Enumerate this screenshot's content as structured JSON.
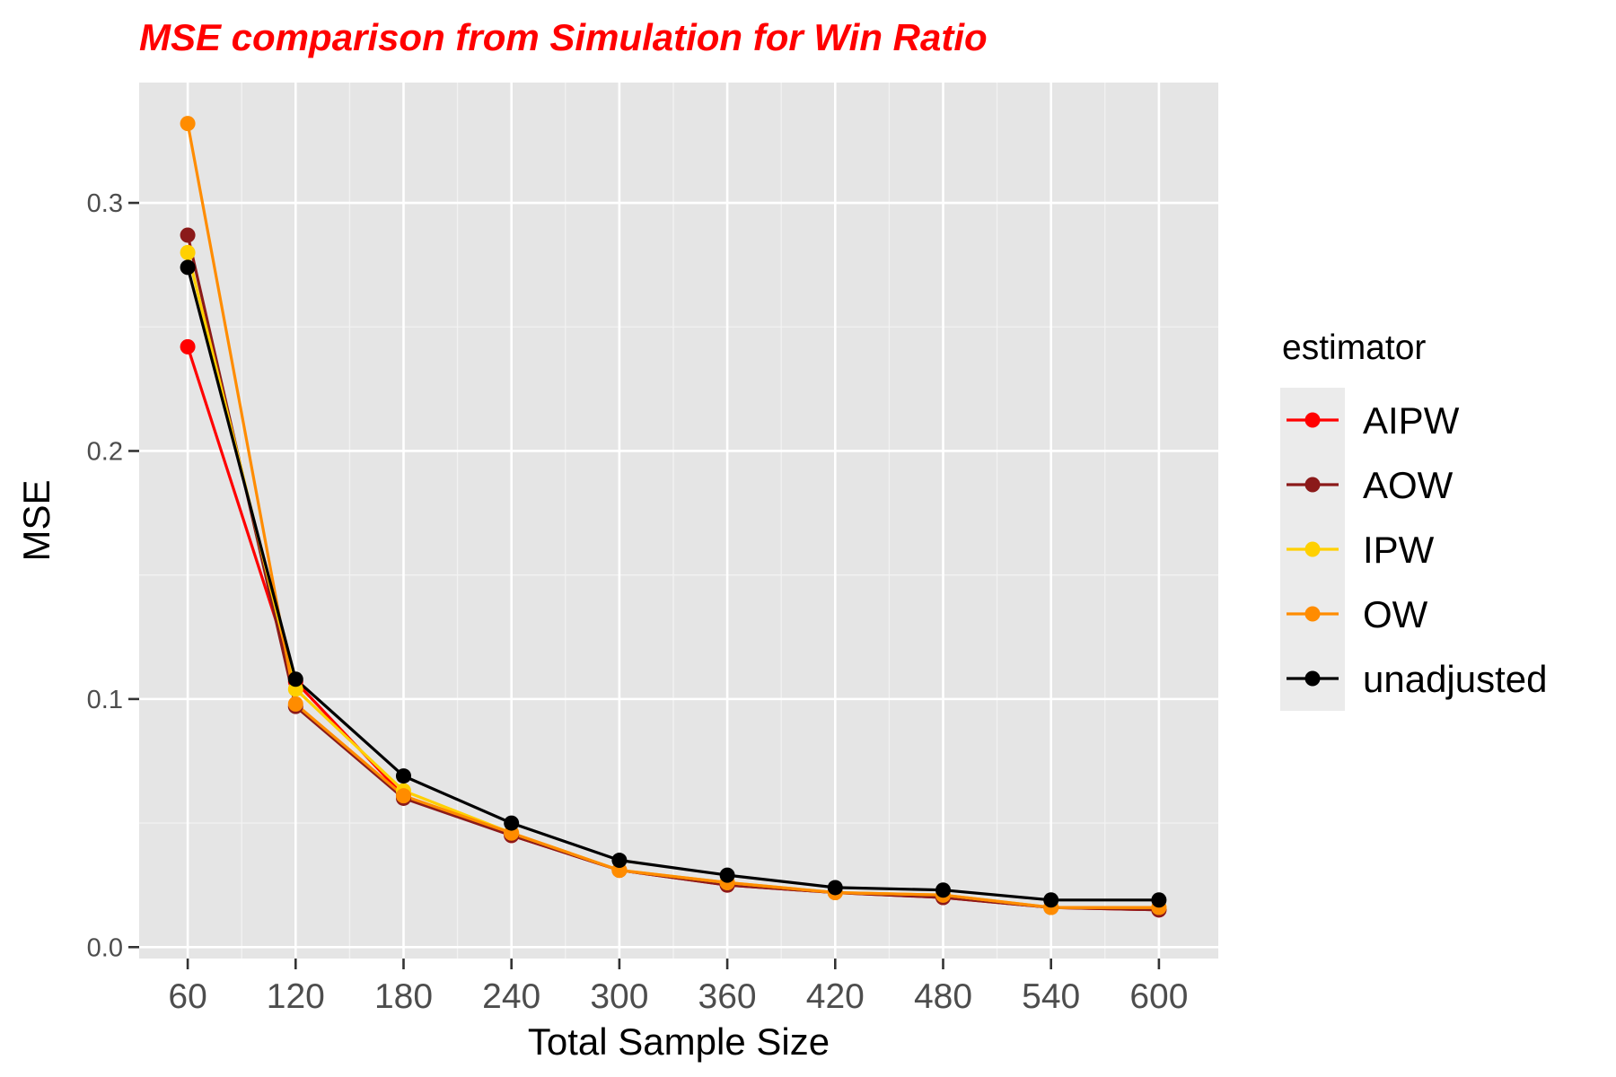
{
  "chart_data": {
    "type": "line",
    "title": "MSE comparison from Simulation for Win Ratio",
    "xlabel": "Total Sample Size",
    "ylabel": "MSE",
    "x": [
      60,
      120,
      180,
      240,
      300,
      360,
      420,
      480,
      540,
      600
    ],
    "x_tick_labels": [
      "60",
      "120",
      "180",
      "240",
      "300",
      "360",
      "420",
      "480",
      "540",
      "600"
    ],
    "y_ticks": [
      0.0,
      0.1,
      0.2,
      0.3
    ],
    "y_tick_labels": [
      "0.0",
      "0.1",
      "0.2",
      "0.3"
    ],
    "xlim": [
      33,
      633
    ],
    "ylim": [
      -0.0046,
      0.3485
    ],
    "grid": true,
    "legend": {
      "title": "estimator",
      "position": "right"
    },
    "series": [
      {
        "name": "AIPW",
        "color": "#ff0000",
        "values": [
          0.242,
          0.107,
          0.061,
          0.045,
          0.031,
          0.025,
          0.022,
          0.02,
          0.016,
          0.015
        ]
      },
      {
        "name": "AOW",
        "color": "#8b1a1a",
        "values": [
          0.287,
          0.097,
          0.06,
          0.045,
          0.031,
          0.025,
          0.022,
          0.02,
          0.016,
          0.015
        ]
      },
      {
        "name": "IPW",
        "color": "#ffd000",
        "values": [
          0.28,
          0.104,
          0.063,
          0.046,
          0.031,
          0.026,
          0.022,
          0.021,
          0.016,
          0.016
        ]
      },
      {
        "name": "OW",
        "color": "#ff8c00",
        "values": [
          0.332,
          0.098,
          0.061,
          0.046,
          0.031,
          0.026,
          0.022,
          0.021,
          0.016,
          0.016
        ]
      },
      {
        "name": "unadjusted",
        "color": "#000000",
        "values": [
          0.274,
          0.108,
          0.069,
          0.05,
          0.035,
          0.029,
          0.024,
          0.023,
          0.019,
          0.019
        ]
      }
    ]
  }
}
